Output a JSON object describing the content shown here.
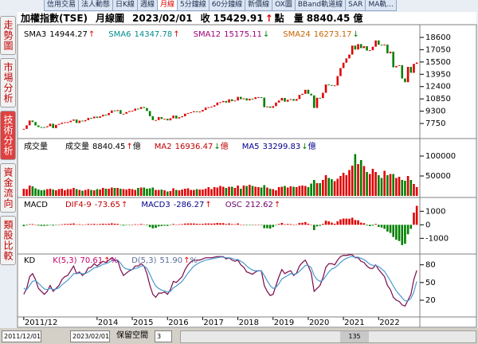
{
  "tabs": [
    {
      "label": "信用交易"
    },
    {
      "label": "法人動態"
    },
    {
      "label": "日K線"
    },
    {
      "label": "週線"
    },
    {
      "label": "月線",
      "active": true
    },
    {
      "label": "5分鐘線"
    },
    {
      "label": "60分鐘線"
    },
    {
      "label": "新價線"
    },
    {
      "label": "OX圖"
    },
    {
      "label": "BBand軌道線"
    },
    {
      "label": "SAR"
    },
    {
      "label": "MA軌..."
    }
  ],
  "side_menu": [
    {
      "label": "走勢圖"
    },
    {
      "label": "市場分析"
    },
    {
      "label": "技術分析",
      "active": true
    },
    {
      "label": "資金流向"
    },
    {
      "label": "類股比較"
    }
  ],
  "header": {
    "name": "加權指數(TSE)",
    "period": "月線圖",
    "date": "2023/02/01",
    "close_label": "收",
    "close": "15429.91",
    "close_arrow": "↑",
    "close_unit": "點",
    "volume_label": "量",
    "volume": "8840.45",
    "volume_unit": "億",
    "arrow_color": "#e00000"
  },
  "chart_data": [
    {
      "type": "candlestick",
      "legend": [
        {
          "name": "SMA3",
          "value": "14944.27",
          "arrow": "↑",
          "color": "#000000",
          "arrow_color": "#e00000"
        },
        {
          "name": "SMA6",
          "value": "14347.78",
          "arrow": "↑",
          "color": "#008c8c",
          "arrow_color": "#e00000"
        },
        {
          "name": "SMA12",
          "value": "15175.11",
          "arrow": "↓",
          "color": "#a0007a",
          "arrow_color": "#008000"
        },
        {
          "name": "SMA24",
          "value": "16273.17",
          "arrow": "↓",
          "color": "#c86400",
          "arrow_color": "#008000"
        }
      ],
      "open": [
        7000,
        7072,
        7517,
        8121,
        7933,
        7501,
        7301,
        7296,
        7270,
        7397,
        7715,
        7166,
        7580,
        7699,
        7850,
        7907,
        7918,
        8093,
        8254,
        7815,
        8107,
        8022,
        8173,
        8450,
        8407,
        8611,
        8462,
        8639,
        8849,
        8791,
        9075,
        9393,
        9315,
        9436,
        8966,
        8974,
        9187,
        9307,
        9361,
        9622,
        9586,
        9820,
        9701,
        9323,
        8665,
        8174,
        8181,
        8554,
        8320,
        8338,
        8145,
        8411,
        8744,
        8377,
        8536,
        8666,
        8984,
        9069,
        9167,
        9290,
        9240,
        9254,
        9448,
        9750,
        9812,
        9872,
        10041,
        10395,
        10427,
        10586,
        10384,
        10794,
        10560,
        10643,
        11104,
        10815,
        10919,
        10657,
        10875,
        10837,
        11057,
        11063,
        11006,
        9802,
        9888,
        9727,
        9932,
        10389,
        10641,
        10967,
        10498,
        10731,
        10824,
        10618,
        10830,
        11358,
        11489,
        11997,
        11495,
        11292,
        9708,
        10992,
        10943,
        11621,
        12665,
        12592,
        12516,
        12546,
        13722,
        14733,
        15410,
        15953,
        16431,
        17567,
        17068,
        17755,
        17247,
        17490,
        16935,
        16987,
        17428,
        18219,
        17674,
        17652,
        17693,
        16593,
        16807,
        14826,
        15000,
        15095,
        13425,
        12950,
        14880,
        14138,
        15265
      ],
      "close": [
        7072,
        7517,
        8121,
        7933,
        7501,
        7301,
        7296,
        7270,
        7397,
        7715,
        7166,
        7580,
        7699,
        7850,
        7907,
        7918,
        8093,
        8254,
        7815,
        8107,
        8022,
        8173,
        8450,
        8407,
        8611,
        8462,
        8639,
        8849,
        8791,
        9075,
        9393,
        9315,
        9436,
        8966,
        8974,
        9187,
        9307,
        9361,
        9622,
        9586,
        9820,
        9701,
        9323,
        8665,
        8174,
        8181,
        8554,
        8320,
        8338,
        8145,
        8411,
        8744,
        8377,
        8536,
        8666,
        8984,
        9069,
        9167,
        9290,
        9240,
        9254,
        9448,
        9750,
        9812,
        9872,
        10041,
        10395,
        10427,
        10586,
        10384,
        10794,
        10560,
        10643,
        11104,
        10815,
        10919,
        10657,
        10875,
        10837,
        11057,
        11063,
        11006,
        9802,
        9888,
        9727,
        9932,
        10389,
        10641,
        10967,
        10498,
        10731,
        10824,
        10618,
        10830,
        11358,
        11489,
        11997,
        11495,
        11292,
        9708,
        10992,
        10943,
        11621,
        12665,
        12592,
        12516,
        12546,
        13722,
        14733,
        15410,
        15953,
        16431,
        17567,
        17068,
        17755,
        17247,
        17490,
        16935,
        16987,
        17428,
        18219,
        17674,
        17652,
        17693,
        16593,
        16807,
        14826,
        15000,
        15095,
        13425,
        12950,
        14880,
        14138,
        15265,
        15429.91
      ],
      "up_color": "#e00000",
      "down_color": "#008000",
      "ylim": [
        6050,
        19700
      ],
      "yticks": [
        7750,
        9300,
        10850,
        12400,
        13950,
        15500,
        17050,
        18600
      ]
    },
    {
      "type": "bar",
      "color_by_price": true,
      "legend": [
        {
          "name": "成交量",
          "color": "#000000"
        },
        {
          "name": "成交量",
          "value": "8840.45",
          "arrow": "↑",
          "unit": "億",
          "color": "#000000",
          "arrow_color": "#e00000"
        },
        {
          "name": "MA2",
          "value": "16936.47",
          "arrow": "↓",
          "unit": "億",
          "color": "#c00000",
          "arrow_color": "#008000"
        },
        {
          "name": "MA5",
          "value": "33299.83",
          "arrow": "↓",
          "unit": "億",
          "color": "#00008c",
          "arrow_color": "#008000"
        }
      ],
      "values": [
        18000,
        17000,
        26000,
        24000,
        19000,
        16000,
        14000,
        15000,
        17000,
        18000,
        16000,
        14000,
        17000,
        18000,
        14000,
        17000,
        17000,
        20000,
        17000,
        15000,
        13000,
        15000,
        17000,
        15000,
        14000,
        17000,
        16000,
        20000,
        18000,
        18000,
        21000,
        20000,
        20000,
        18000,
        17000,
        16000,
        18000,
        17000,
        15000,
        20000,
        21000,
        21000,
        18000,
        19000,
        21000,
        15000,
        15000,
        16000,
        14000,
        11000,
        12000,
        19000,
        15000,
        14000,
        16000,
        18000,
        19000,
        15000,
        15000,
        17000,
        16000,
        16000,
        18000,
        22000,
        17000,
        22000,
        21000,
        25000,
        23000,
        20000,
        23000,
        23000,
        20000,
        26000,
        18000,
        26000,
        25000,
        28000,
        25000,
        23000,
        22000,
        21000,
        27000,
        21000,
        18000,
        17000,
        14000,
        22000,
        23000,
        25000,
        21000,
        24000,
        23000,
        22000,
        25000,
        26000,
        25000,
        22000,
        31000,
        40000,
        32000,
        32000,
        40000,
        52000,
        45000,
        42000,
        37000,
        43000,
        50000,
        58000,
        52000,
        65000,
        76000,
        105000,
        80000,
        90000,
        75000,
        60000,
        55000,
        68000,
        60000,
        52000,
        45000,
        63000,
        52000,
        55000,
        55000,
        45000,
        48000,
        40000,
        38000,
        50000,
        40000,
        30000,
        22000
      ],
      "up_color": "#e00000",
      "down_color": "#008000",
      "ylim": [
        0,
        140000
      ],
      "yticks": [
        50000,
        100000
      ]
    },
    {
      "type": "bar",
      "color_by_sign": true,
      "legend": [
        {
          "name": "MACD",
          "color": "#000000"
        },
        {
          "name": "DIF4-9",
          "value": "-73.65",
          "arrow": "↑",
          "color": "#c00000",
          "arrow_color": "#e00000"
        },
        {
          "name": "MACD3",
          "value": "-286.27",
          "arrow": "↑",
          "color": "#00008c",
          "arrow_color": "#e00000"
        },
        {
          "name": "OSC",
          "value": "212.62",
          "arrow": "↑",
          "color": "#6a006a",
          "arrow_color": "#e00000"
        }
      ],
      "values": [
        -100,
        -40,
        40,
        50,
        0,
        -60,
        -80,
        -80,
        -60,
        -10,
        -60,
        -20,
        10,
        40,
        60,
        60,
        80,
        100,
        30,
        40,
        20,
        30,
        60,
        50,
        70,
        40,
        60,
        80,
        60,
        80,
        110,
        80,
        70,
        -20,
        -60,
        -30,
        -10,
        0,
        40,
        30,
        60,
        30,
        -40,
        -170,
        -260,
        -230,
        -120,
        -90,
        -70,
        -80,
        -20,
        60,
        20,
        40,
        50,
        90,
        100,
        100,
        100,
        80,
        60,
        70,
        100,
        100,
        90,
        100,
        140,
        120,
        120,
        60,
        100,
        50,
        40,
        100,
        20,
        20,
        -30,
        -10,
        -30,
        0,
        0,
        -10,
        -250,
        -250,
        -280,
        -170,
        -30,
        60,
        140,
        40,
        60,
        50,
        10,
        30,
        140,
        150,
        200,
        80,
        0,
        -390,
        -120,
        -70,
        70,
        300,
        250,
        160,
        80,
        260,
        400,
        460,
        460,
        450,
        520,
        350,
        330,
        160,
        120,
        -50,
        -100,
        -60,
        60,
        -150,
        -200,
        -300,
        -500,
        -600,
        -900,
        -1100,
        -1200,
        -1500,
        -1400,
        -700,
        -300,
        900,
        1400
      ],
      "up_color": "#e00000",
      "down_color": "#008000",
      "ylim": [
        -2100,
        1900
      ],
      "yticks": [
        -1000,
        0,
        1000
      ]
    },
    {
      "type": "line",
      "legend": [
        {
          "name": "KD",
          "color": "#000000"
        },
        {
          "name": "K(5,3)",
          "value": "70.61",
          "arrow": "↑",
          "unit": "%",
          "color": "#c0006a",
          "arrow_color": "#e00000"
        },
        {
          "name": "D(5,3)",
          "value": "51.90",
          "arrow": "↑",
          "unit": "%",
          "color": "#5a6e9a",
          "arrow_color": "#e00000"
        }
      ],
      "categories": [
        "2011/12",
        null,
        null,
        null,
        null,
        null,
        null,
        null,
        null,
        null,
        null,
        null,
        null,
        null,
        null,
        null,
        null,
        null,
        null,
        null,
        null,
        null,
        null,
        null,
        null,
        "2014",
        null,
        null,
        null,
        null,
        null,
        null,
        null,
        null,
        null,
        null,
        null,
        "2015",
        null,
        null,
        null,
        null,
        null,
        null,
        null,
        null,
        null,
        null,
        null,
        "2016",
        null,
        null,
        null,
        null,
        null,
        null,
        null,
        null,
        null,
        null,
        null,
        "2017",
        null,
        null,
        null,
        null,
        null,
        null,
        null,
        null,
        null,
        null,
        null,
        "2018",
        null,
        null,
        null,
        null,
        null,
        null,
        null,
        null,
        null,
        null,
        null,
        "2019",
        null,
        null,
        null,
        null,
        null,
        null,
        null,
        null,
        null,
        null,
        null,
        "2020",
        null,
        null,
        null,
        null,
        null,
        null,
        null,
        null,
        null,
        null,
        null,
        "2021",
        null,
        null,
        null,
        null,
        null,
        null,
        null,
        null,
        null,
        null,
        null,
        "2022",
        null,
        null,
        null,
        null,
        null,
        null,
        null,
        null,
        null,
        null,
        null,
        null,
        null
      ],
      "series": [
        {
          "color": "#7a0a4a",
          "values": [
            30,
            40,
            60,
            65,
            55,
            40,
            35,
            30,
            35,
            45,
            35,
            40,
            45,
            55,
            60,
            62,
            70,
            78,
            65,
            68,
            62,
            66,
            75,
            76,
            82,
            78,
            82,
            86,
            84,
            88,
            92,
            88,
            88,
            72,
            62,
            66,
            70,
            72,
            78,
            78,
            82,
            78,
            65,
            45,
            30,
            25,
            32,
            32,
            34,
            30,
            38,
            52,
            50,
            55,
            60,
            72,
            80,
            85,
            88,
            88,
            88,
            90,
            92,
            92,
            92,
            93,
            94,
            94,
            94,
            90,
            92,
            88,
            86,
            88,
            80,
            76,
            68,
            66,
            64,
            68,
            70,
            70,
            45,
            35,
            28,
            30,
            45,
            60,
            72,
            65,
            68,
            70,
            62,
            66,
            78,
            84,
            88,
            78,
            66,
            35,
            40,
            45,
            58,
            76,
            82,
            82,
            80,
            88,
            94,
            96,
            96,
            97,
            97,
            92,
            92,
            86,
            84,
            78,
            74,
            74,
            80,
            72,
            66,
            60,
            45,
            38,
            25,
            20,
            18,
            12,
            10,
            20,
            30,
            55,
            70.61
          ]
        },
        {
          "color": "#4a9ad0",
          "values": [
            40,
            38,
            45,
            52,
            53,
            49,
            44,
            39,
            38,
            40,
            38,
            39,
            41,
            46,
            50,
            54,
            59,
            65,
            65,
            66,
            65,
            65,
            68,
            71,
            75,
            76,
            78,
            81,
            82,
            84,
            87,
            87,
            88,
            83,
            76,
            73,
            72,
            72,
            74,
            75,
            78,
            78,
            74,
            64,
            53,
            44,
            40,
            37,
            36,
            34,
            35,
            41,
            44,
            48,
            52,
            59,
            66,
            72,
            78,
            81,
            84,
            86,
            88,
            89,
            90,
            91,
            92,
            93,
            93,
            92,
            92,
            91,
            89,
            89,
            86,
            83,
            78,
            74,
            71,
            70,
            70,
            70,
            62,
            53,
            45,
            40,
            42,
            48,
            56,
            59,
            62,
            65,
            64,
            65,
            69,
            74,
            79,
            79,
            75,
            62,
            55,
            52,
            54,
            61,
            68,
            73,
            75,
            79,
            84,
            88,
            91,
            93,
            94,
            93,
            93,
            91,
            89,
            85,
            81,
            79,
            79,
            77,
            73,
            69,
            61,
            53,
            44,
            36,
            30,
            24,
            19,
            19,
            23,
            34,
            51.9
          ]
        }
      ],
      "ylim": [
        -7,
        97
      ],
      "yticks": [
        20,
        50,
        80
      ]
    }
  ],
  "status": {
    "start_date": "2011/12/01",
    "end_date": "2023/02/01",
    "reserve_label": "保留空間",
    "reserve_value": "3",
    "scroll_value": "135"
  }
}
